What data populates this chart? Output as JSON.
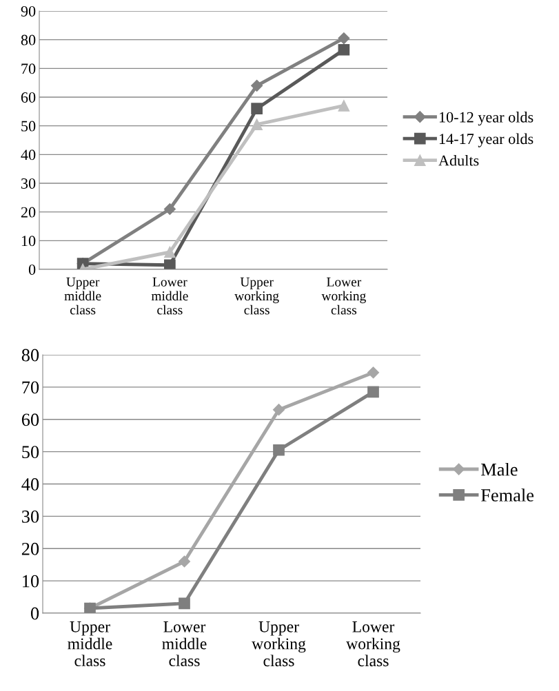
{
  "chart_data": [
    {
      "type": "line",
      "categories": [
        "Upper\nmiddle\nclass",
        "Lower\nmiddle\nclass",
        "Upper\nworking\nclass",
        "Lower\nworking\nclass"
      ],
      "ylim": [
        0,
        90
      ],
      "yticks": [
        0,
        10,
        20,
        30,
        40,
        50,
        60,
        70,
        80,
        90
      ],
      "grid": "y",
      "legend": "right",
      "series": [
        {
          "name": "10-12 year olds",
          "color": "#808080",
          "marker": "diamond",
          "values": [
            2,
            21,
            64,
            80.5
          ]
        },
        {
          "name": "14-17 year olds",
          "color": "#595959",
          "marker": "square",
          "values": [
            2,
            1.5,
            56,
            76.5
          ]
        },
        {
          "name": "Adults",
          "color": "#bfbfbf",
          "marker": "triangle",
          "values": [
            0,
            6,
            50.5,
            57
          ]
        }
      ]
    },
    {
      "type": "line",
      "categories": [
        "Upper\nmiddle\nclass",
        "Lower\nmiddle\nclass",
        "Upper\nworking\nclass",
        "Lower\nworking\nclass"
      ],
      "ylim": [
        0,
        80
      ],
      "yticks": [
        0,
        10,
        20,
        30,
        40,
        50,
        60,
        70,
        80
      ],
      "grid": "y",
      "legend": "right",
      "series": [
        {
          "name": "Male",
          "color": "#a6a6a6",
          "marker": "diamond",
          "values": [
            1.5,
            16,
            63,
            74.5
          ]
        },
        {
          "name": "Female",
          "color": "#7f7f7f",
          "marker": "square",
          "values": [
            1.5,
            3,
            50.5,
            68.5
          ]
        }
      ]
    }
  ]
}
